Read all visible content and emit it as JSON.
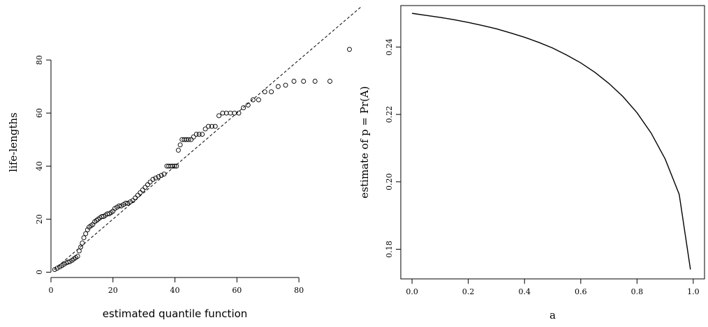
{
  "chart_data": [
    {
      "type": "scatter",
      "title": "",
      "xlabel": "estimated quantile function",
      "ylabel": "life-lengths",
      "xlim": [
        0,
        98
      ],
      "ylim": [
        -2,
        100
      ],
      "x_ticks": [
        "0",
        "20",
        "40",
        "60",
        "80"
      ],
      "y_ticks": [
        "0",
        "20",
        "40",
        "60",
        "80"
      ],
      "reference_line": {
        "style": "dashed",
        "slope": 1,
        "intercept": 0
      },
      "series": [
        {
          "marker": "open-circle",
          "x": [
            1.2,
            2.0,
            2.8,
            3.5,
            4.2,
            4.9,
            5.5,
            6.1,
            6.8,
            7.4,
            8.0,
            8.6,
            9.1,
            9.6,
            10.1,
            10.6,
            11.2,
            11.8,
            12.3,
            12.9,
            13.5,
            14.1,
            14.7,
            15.2,
            15.8,
            16.4,
            17.0,
            17.6,
            18.2,
            18.8,
            19.4,
            20.0,
            20.6,
            21.3,
            22.0,
            22.7,
            23.4,
            24.1,
            24.8,
            25.6,
            26.4,
            27.2,
            28.0,
            28.8,
            29.6,
            30.4,
            31.2,
            32.0,
            32.9,
            33.8,
            34.7,
            35.6,
            36.5,
            37.4,
            38.0,
            38.7,
            39.3,
            39.9,
            40.5,
            41.1,
            41.7,
            42.3,
            43.0,
            43.7,
            44.4,
            45.2,
            46.0,
            46.9,
            47.8,
            48.8,
            49.8,
            50.8,
            51.9,
            53.0,
            54.2,
            55.4,
            56.6,
            57.9,
            59.2,
            60.6,
            62.1,
            63.6,
            65.2,
            67.0,
            69.0,
            71.1,
            73.3,
            75.7,
            78.4,
            81.5,
            85.2,
            90.0,
            96.3
          ],
          "y": [
            1.0,
            1.5,
            2.0,
            2.5,
            3.0,
            3.5,
            3.8,
            4.0,
            4.5,
            5.0,
            5.5,
            6.0,
            8.0,
            9.5,
            11.0,
            13.0,
            14.5,
            16.0,
            17.0,
            17.5,
            18.0,
            19.0,
            19.5,
            20.0,
            20.5,
            21.0,
            21.0,
            21.5,
            22.0,
            22.0,
            22.5,
            23.0,
            24.0,
            24.5,
            25.0,
            25.0,
            25.5,
            26.0,
            26.0,
            26.5,
            27.0,
            28.0,
            29.0,
            30.0,
            31.0,
            32.0,
            33.0,
            34.0,
            35.0,
            35.5,
            36.0,
            36.5,
            37.0,
            40.0,
            40.0,
            40.0,
            40.0,
            40.0,
            40.0,
            46.0,
            48.0,
            50.0,
            50.0,
            50.0,
            50.0,
            50.0,
            51.0,
            52.0,
            52.0,
            52.0,
            54.0,
            55.0,
            55.0,
            55.0,
            59.0,
            60.0,
            60.0,
            60.0,
            60.0,
            60.0,
            62.0,
            63.0,
            65.0,
            65.0,
            68.0,
            68.0,
            70.0,
            70.5,
            72.0,
            72.0,
            72.0,
            72.0,
            84.0
          ]
        }
      ]
    },
    {
      "type": "line",
      "title": "",
      "xlabel": "a",
      "ylabel": "estimate of p = Pr(A)",
      "xlim": [
        -0.04,
        1.04
      ],
      "ylim": [
        0.1712,
        0.2523
      ],
      "x_ticks": [
        "0.0",
        "0.2",
        "0.4",
        "0.6",
        "0.8",
        "1.0"
      ],
      "y_ticks": [
        "0.18",
        "0.20",
        "0.22",
        "0.24"
      ],
      "series": [
        {
          "x": [
            0.0,
            0.05,
            0.1,
            0.15,
            0.2,
            0.25,
            0.3,
            0.35,
            0.4,
            0.45,
            0.5,
            0.55,
            0.6,
            0.65,
            0.7,
            0.75,
            0.8,
            0.85,
            0.9,
            0.95,
            0.99
          ],
          "y": [
            0.25,
            0.2494,
            0.2488,
            0.2481,
            0.2473,
            0.2464,
            0.2454,
            0.2442,
            0.2429,
            0.2414,
            0.2397,
            0.2376,
            0.2353,
            0.2325,
            0.2292,
            0.2253,
            0.2205,
            0.2145,
            0.2068,
            0.1963,
            0.174
          ]
        }
      ]
    }
  ]
}
